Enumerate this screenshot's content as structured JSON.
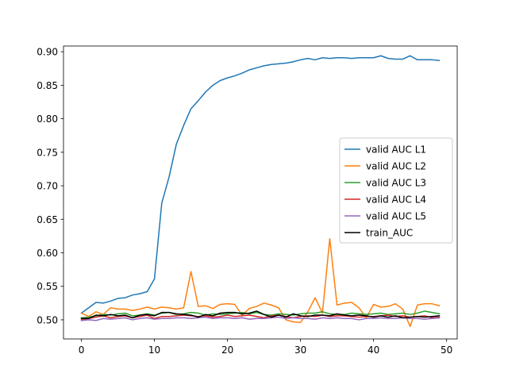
{
  "chart_data": {
    "type": "line",
    "xlim": [
      -2.45,
      51.45
    ],
    "ylim": [
      0.4715,
      0.9085
    ],
    "xticks": [
      0,
      10,
      20,
      30,
      40,
      50
    ],
    "yticks": [
      0.5,
      0.55,
      0.6,
      0.65,
      0.7,
      0.75,
      0.8,
      0.85,
      0.9
    ],
    "ytick_labels": [
      "0.50",
      "0.55",
      "0.60",
      "0.65",
      "0.70",
      "0.75",
      "0.80",
      "0.85",
      "0.90"
    ],
    "grid": false,
    "legend_position": "center-right",
    "x": [
      0,
      1,
      2,
      3,
      4,
      5,
      6,
      7,
      8,
      9,
      10,
      11,
      12,
      13,
      14,
      15,
      16,
      17,
      18,
      19,
      20,
      21,
      22,
      23,
      24,
      25,
      26,
      27,
      28,
      29,
      30,
      31,
      32,
      33,
      34,
      35,
      36,
      37,
      38,
      39,
      40,
      41,
      42,
      43,
      44,
      45,
      46,
      47,
      48,
      49
    ],
    "series": [
      {
        "name": "valid AUC L1",
        "color": "#1f77b4",
        "values": [
          0.51,
          0.518,
          0.526,
          0.525,
          0.528,
          0.532,
          0.533,
          0.537,
          0.539,
          0.542,
          0.561,
          0.674,
          0.713,
          0.762,
          0.79,
          0.815,
          0.827,
          0.84,
          0.85,
          0.857,
          0.861,
          0.864,
          0.868,
          0.873,
          0.876,
          0.879,
          0.881,
          0.882,
          0.883,
          0.885,
          0.888,
          0.89,
          0.888,
          0.891,
          0.89,
          0.891,
          0.891,
          0.89,
          0.891,
          0.891,
          0.891,
          0.894,
          0.89,
          0.889,
          0.889,
          0.894,
          0.888,
          0.888,
          0.888,
          0.887
        ]
      },
      {
        "name": "valid AUC L2",
        "color": "#ff7f0e",
        "values": [
          0.51,
          0.505,
          0.512,
          0.508,
          0.518,
          0.516,
          0.516,
          0.514,
          0.516,
          0.519,
          0.516,
          0.519,
          0.518,
          0.516,
          0.518,
          0.572,
          0.52,
          0.521,
          0.517,
          0.523,
          0.524,
          0.523,
          0.507,
          0.517,
          0.52,
          0.525,
          0.522,
          0.518,
          0.5,
          0.497,
          0.496,
          0.512,
          0.533,
          0.51,
          0.621,
          0.522,
          0.525,
          0.526,
          0.518,
          0.503,
          0.523,
          0.519,
          0.52,
          0.524,
          0.516,
          0.49,
          0.522,
          0.524,
          0.524,
          0.521
        ]
      },
      {
        "name": "valid AUC L3",
        "color": "#2ca02c",
        "values": [
          0.503,
          0.504,
          0.506,
          0.508,
          0.507,
          0.509,
          0.51,
          0.506,
          0.507,
          0.509,
          0.507,
          0.51,
          0.511,
          0.508,
          0.509,
          0.511,
          0.51,
          0.507,
          0.509,
          0.508,
          0.509,
          0.51,
          0.511,
          0.509,
          0.511,
          0.508,
          0.507,
          0.509,
          0.508,
          0.507,
          0.509,
          0.51,
          0.51,
          0.512,
          0.509,
          0.508,
          0.508,
          0.51,
          0.509,
          0.508,
          0.509,
          0.51,
          0.508,
          0.509,
          0.51,
          0.508,
          0.51,
          0.513,
          0.511,
          0.509
        ]
      },
      {
        "name": "valid AUC L4",
        "color": "#d62728",
        "values": [
          0.5,
          0.502,
          0.504,
          0.506,
          0.503,
          0.505,
          0.506,
          0.503,
          0.505,
          0.507,
          0.502,
          0.505,
          0.505,
          0.506,
          0.507,
          0.506,
          0.505,
          0.506,
          0.504,
          0.505,
          0.507,
          0.505,
          0.506,
          0.507,
          0.505,
          0.503,
          0.506,
          0.507,
          0.505,
          0.503,
          0.505,
          0.506,
          0.505,
          0.507,
          0.505,
          0.506,
          0.506,
          0.505,
          0.504,
          0.505,
          0.505,
          0.506,
          0.507,
          0.505,
          0.506,
          0.504,
          0.505,
          0.506,
          0.503,
          0.504
        ]
      },
      {
        "name": "valid AUC L5",
        "color": "#9467bd",
        "values": [
          0.499,
          0.5,
          0.499,
          0.502,
          0.501,
          0.502,
          0.503,
          0.5,
          0.502,
          0.503,
          0.501,
          0.502,
          0.502,
          0.503,
          0.503,
          0.502,
          0.503,
          0.504,
          0.502,
          0.503,
          0.503,
          0.502,
          0.503,
          0.501,
          0.502,
          0.502,
          0.503,
          0.504,
          0.502,
          0.503,
          0.502,
          0.502,
          0.501,
          0.503,
          0.502,
          0.503,
          0.502,
          0.502,
          0.5,
          0.502,
          0.502,
          0.503,
          0.502,
          0.502,
          0.503,
          0.502,
          0.502,
          0.501,
          0.502,
          0.503
        ]
      },
      {
        "name": "train_AUC",
        "color": "#000000",
        "values": [
          0.502,
          0.502,
          0.507,
          0.506,
          0.508,
          0.506,
          0.507,
          0.503,
          0.507,
          0.508,
          0.506,
          0.511,
          0.511,
          0.509,
          0.508,
          0.507,
          0.504,
          0.508,
          0.506,
          0.51,
          0.511,
          0.511,
          0.509,
          0.51,
          0.513,
          0.508,
          0.504,
          0.507,
          0.504,
          0.509,
          0.506,
          0.505,
          0.507,
          0.507,
          0.506,
          0.509,
          0.507,
          0.506,
          0.507,
          0.506,
          0.504,
          0.506,
          0.504,
          0.506,
          0.503,
          0.504,
          0.505,
          0.504,
          0.505,
          0.506
        ]
      }
    ]
  }
}
